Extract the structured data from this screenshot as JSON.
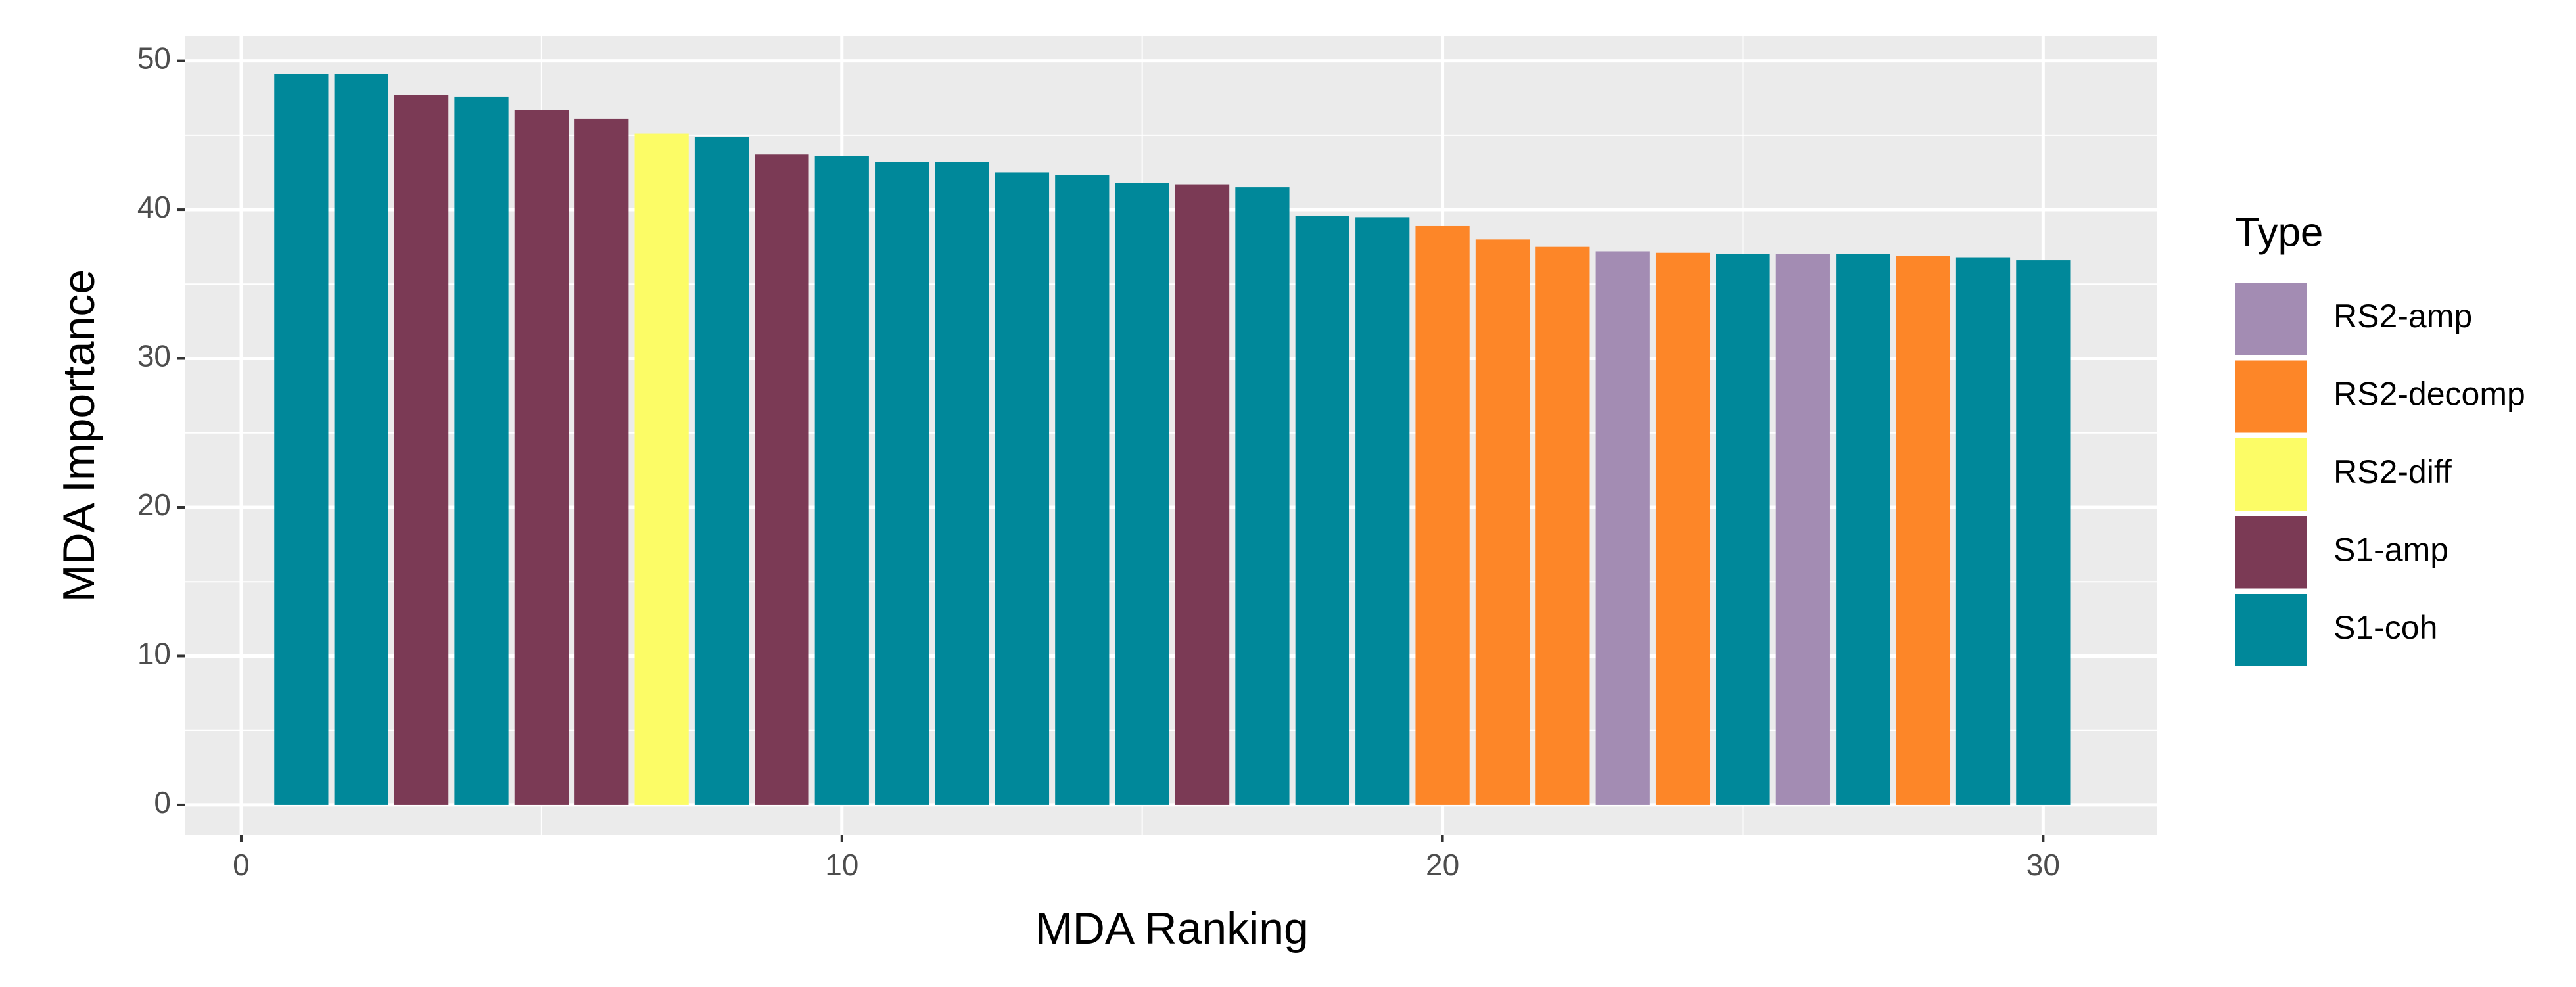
{
  "chart_data": {
    "type": "bar",
    "x_label": "MDA Ranking",
    "y_label": "MDA Importance",
    "legend_title": "Type",
    "xlim": [
      -0.93,
      31.9
    ],
    "ylim": [
      -1.99,
      51.66
    ],
    "xticks": [
      0,
      10,
      20,
      30
    ],
    "yticks": [
      0,
      10,
      20,
      30,
      40,
      50
    ],
    "grid": true,
    "legend_position": "right",
    "series": [
      {
        "name": "RS2-amp",
        "color": "#a38cb3",
        "x": [
          23,
          26
        ],
        "values": [
          37.2,
          37.0
        ]
      },
      {
        "name": "RS2-decomp",
        "color": "#fd8628",
        "x": [
          20,
          21,
          22,
          24,
          28
        ],
        "values": [
          38.9,
          38.0,
          37.5,
          37.1,
          36.9
        ]
      },
      {
        "name": "RS2-diff",
        "color": "#fcfc66",
        "x": [
          7
        ],
        "values": [
          45.1
        ]
      },
      {
        "name": "S1-amp",
        "color": "#7b3a55",
        "x": [
          3,
          5,
          6,
          9,
          16
        ],
        "values": [
          47.7,
          46.7,
          46.1,
          43.7,
          41.7
        ]
      },
      {
        "name": "S1-coh",
        "color": "#00889a",
        "x": [
          1,
          2,
          4,
          8,
          10,
          11,
          12,
          13,
          14,
          15,
          17,
          18,
          19,
          25,
          27,
          29,
          30
        ],
        "values": [
          49.1,
          49.1,
          47.6,
          44.9,
          43.6,
          43.2,
          43.2,
          42.5,
          42.3,
          41.8,
          41.5,
          39.6,
          39.5,
          37.0,
          37.0,
          36.8,
          36.6
        ]
      }
    ]
  }
}
